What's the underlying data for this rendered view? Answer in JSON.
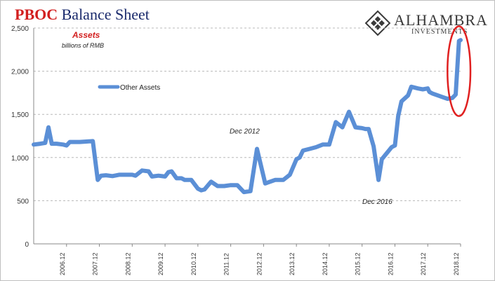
{
  "header": {
    "title_part1": "PBOC",
    "title_part2": "Balance Sheet",
    "subtitle": "Assets",
    "units": "billions of RMB"
  },
  "logo": {
    "name": "ALHAMBRA",
    "sub": "INVESTMENTS",
    "icon": "diamond-lattice-icon"
  },
  "colors": {
    "series": "#5b8fd6",
    "highlight": "#e02020",
    "grid": "#b8b8b8",
    "title_red": "#d21f1f",
    "title_blue": "#1a2a6c"
  },
  "chart_data": {
    "type": "line",
    "title": "PBOC Balance Sheet",
    "subtitle": "Assets",
    "ylabel": "billions of RMB",
    "ylim": [
      0,
      2500
    ],
    "y_ticks": [
      "0",
      "500",
      "1,000",
      "1,500",
      "2,000",
      "2,500"
    ],
    "y_tick_values": [
      0,
      500,
      1000,
      1500,
      2000,
      2500
    ],
    "x_ticks": [
      "2006.12",
      "2007.12",
      "2008.12",
      "2009.12",
      "2010.12",
      "2011.12",
      "2012.12",
      "2013.12",
      "2014.12",
      "2015.12",
      "2016.12",
      "2017.12",
      "2018.12"
    ],
    "x_tick_values": [
      2007.0,
      2008.0,
      2009.0,
      2010.0,
      2011.0,
      2012.0,
      2013.0,
      2014.0,
      2015.0,
      2016.0,
      2017.0,
      2018.0,
      2019.0
    ],
    "xlim": [
      2006.0,
      2019.0
    ],
    "grid": "horizontal dashed",
    "legend_position": "upper-left",
    "series": [
      {
        "name": "Other Assets",
        "x": [
          2006.0,
          2006.2,
          2006.35,
          2006.45,
          2006.55,
          2006.7,
          2006.9,
          2007.0,
          2007.1,
          2007.2,
          2007.4,
          2007.6,
          2007.8,
          2007.95,
          2008.05,
          2008.2,
          2008.4,
          2008.6,
          2008.8,
          2009.0,
          2009.1,
          2009.3,
          2009.5,
          2009.6,
          2009.8,
          2010.0,
          2010.1,
          2010.2,
          2010.35,
          2010.5,
          2010.6,
          2010.8,
          2011.0,
          2011.1,
          2011.2,
          2011.4,
          2011.6,
          2011.8,
          2012.0,
          2012.2,
          2012.4,
          2012.6,
          2012.8,
          2013.0,
          2013.05,
          2013.2,
          2013.35,
          2013.5,
          2013.6,
          2013.8,
          2014.0,
          2014.1,
          2014.2,
          2014.4,
          2014.6,
          2014.8,
          2015.0,
          2015.2,
          2015.4,
          2015.6,
          2015.8,
          2016.0,
          2016.1,
          2016.2,
          2016.35,
          2016.5,
          2016.6,
          2016.75,
          2016.9,
          2017.0,
          2017.1,
          2017.2,
          2017.4,
          2017.5,
          2017.7,
          2017.85,
          2018.0,
          2018.05,
          2018.15,
          2018.3,
          2018.45,
          2018.6,
          2018.75,
          2018.85,
          2018.95,
          2019.0
        ],
        "y": [
          1150,
          1160,
          1170,
          1350,
          1160,
          1160,
          1150,
          1140,
          1180,
          1180,
          1180,
          1185,
          1190,
          740,
          790,
          795,
          785,
          800,
          800,
          800,
          790,
          850,
          840,
          780,
          790,
          780,
          830,
          840,
          760,
          760,
          740,
          740,
          640,
          620,
          630,
          720,
          670,
          670,
          680,
          680,
          600,
          610,
          1100,
          780,
          700,
          720,
          740,
          740,
          740,
          800,
          980,
          1000,
          1080,
          1100,
          1120,
          1150,
          1150,
          1410,
          1350,
          1530,
          1350,
          1340,
          1330,
          1330,
          1130,
          740,
          980,
          1050,
          1120,
          1140,
          1480,
          1650,
          1720,
          1820,
          1800,
          1790,
          1800,
          1760,
          1740,
          1720,
          1700,
          1680,
          1690,
          1730,
          2350,
          2360
        ]
      }
    ],
    "annotations": [
      {
        "text": "Dec 2012",
        "x": 2012.85,
        "y": 1100
      },
      {
        "text": "Dec 2016",
        "x": 2016.25,
        "y": 740
      }
    ],
    "highlight": {
      "shape": "ellipse",
      "x_range": [
        2018.6,
        2019.3
      ],
      "y_range": [
        1480,
        2520
      ]
    }
  }
}
